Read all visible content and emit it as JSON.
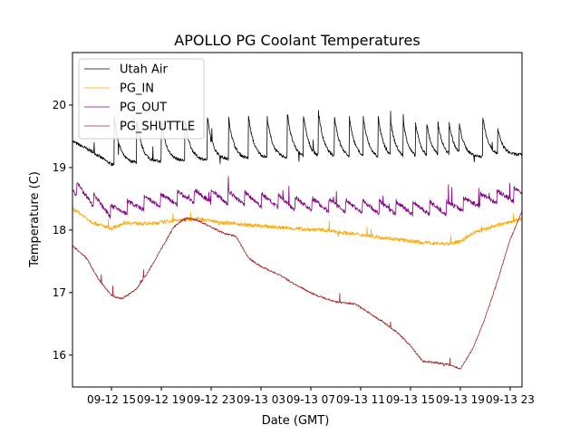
{
  "chart_data": {
    "type": "line",
    "title": "APOLLO PG Coolant Temperatures",
    "xlabel": "Date (GMT)",
    "ylabel": "Temperature (C)",
    "x_units": "hours since 09-12 00:00 GMT",
    "xlim": [
      11.87,
      47.95
    ],
    "ylim": [
      15.49,
      20.84
    ],
    "grid": false,
    "legend_position": "top-left",
    "x_ticks": [
      {
        "value": 15,
        "label": "09-12 15"
      },
      {
        "value": 19,
        "label": "09-12 19"
      },
      {
        "value": 23,
        "label": "09-12 23"
      },
      {
        "value": 27,
        "label": "09-13 03"
      },
      {
        "value": 31,
        "label": "09-13 07"
      },
      {
        "value": 35,
        "label": "09-13 11"
      },
      {
        "value": 39,
        "label": "09-13 15"
      },
      {
        "value": 43,
        "label": "09-13 19"
      },
      {
        "value": 47,
        "label": "09-13 23"
      }
    ],
    "y_ticks": [
      {
        "value": 16,
        "label": "16"
      },
      {
        "value": 17,
        "label": "17"
      },
      {
        "value": 18,
        "label": "18"
      },
      {
        "value": 19,
        "label": "19"
      },
      {
        "value": 20,
        "label": "20"
      }
    ],
    "series": [
      {
        "name": "Utah Air",
        "color": "#000000",
        "style": "sawtooth",
        "baseline": [
          [
            11.87,
            19.42
          ],
          [
            13.5,
            19.25
          ],
          [
            15.0,
            19.05
          ],
          [
            20,
            19.1
          ],
          [
            30,
            19.15
          ],
          [
            40,
            19.12
          ],
          [
            47.95,
            19.2
          ]
        ],
        "peaks": [
          [
            15.2,
            19.85
          ],
          [
            17.0,
            19.8
          ],
          [
            19.0,
            19.75
          ],
          [
            20.9,
            19.75
          ],
          [
            22.7,
            19.8
          ],
          [
            24.4,
            19.8
          ],
          [
            26.0,
            19.82
          ],
          [
            27.5,
            19.8
          ],
          [
            29.1,
            19.9
          ],
          [
            30.4,
            19.85
          ],
          [
            31.6,
            19.92
          ],
          [
            32.9,
            19.82
          ],
          [
            34.1,
            19.8
          ],
          [
            35.2,
            19.82
          ],
          [
            36.4,
            19.82
          ],
          [
            37.4,
            19.75
          ],
          [
            38.4,
            19.76
          ],
          [
            39.4,
            19.72
          ],
          [
            40.3,
            19.72
          ],
          [
            41.2,
            19.73
          ],
          [
            42.1,
            19.72
          ],
          [
            42.9,
            19.72
          ],
          [
            44.8,
            19.82
          ],
          [
            46.0,
            19.62
          ],
          [
            48.0,
            19.65
          ]
        ]
      },
      {
        "name": "PG_IN",
        "color": "#ffa500",
        "style": "noisy",
        "points": [
          [
            11.87,
            18.35
          ],
          [
            13.5,
            18.12
          ],
          [
            15.0,
            18.02
          ],
          [
            16,
            18.12
          ],
          [
            18,
            18.1
          ],
          [
            20,
            18.15
          ],
          [
            22,
            18.18
          ],
          [
            24,
            18.12
          ],
          [
            26,
            18.08
          ],
          [
            28,
            18.05
          ],
          [
            30,
            18.02
          ],
          [
            32,
            18.0
          ],
          [
            34,
            17.95
          ],
          [
            36,
            17.9
          ],
          [
            38,
            17.85
          ],
          [
            40,
            17.8
          ],
          [
            42,
            17.78
          ],
          [
            43,
            17.82
          ],
          [
            44,
            17.95
          ],
          [
            45.5,
            18.05
          ],
          [
            47.95,
            18.18
          ]
        ]
      },
      {
        "name": "PG_OUT",
        "color": "#800080",
        "style": "sawtooth-small",
        "baseline": [
          [
            11.87,
            18.7
          ],
          [
            15.0,
            18.3
          ],
          [
            18,
            18.45
          ],
          [
            22,
            18.55
          ],
          [
            26,
            18.5
          ],
          [
            30,
            18.42
          ],
          [
            34,
            18.38
          ],
          [
            38,
            18.35
          ],
          [
            42,
            18.35
          ],
          [
            45,
            18.5
          ],
          [
            47.95,
            18.58
          ]
        ],
        "amplitude": 0.15
      },
      {
        "name": "PG_SHUTTLE",
        "color": "#a52a2a",
        "style": "noisy",
        "points": [
          [
            11.87,
            17.75
          ],
          [
            13.0,
            17.55
          ],
          [
            14.0,
            17.2
          ],
          [
            15.0,
            16.95
          ],
          [
            15.8,
            16.9
          ],
          [
            17.0,
            17.05
          ],
          [
            18.0,
            17.35
          ],
          [
            19.0,
            17.7
          ],
          [
            20.0,
            18.05
          ],
          [
            21.0,
            18.2
          ],
          [
            22.0,
            18.15
          ],
          [
            23.0,
            18.05
          ],
          [
            24.0,
            17.95
          ],
          [
            25.0,
            17.9
          ],
          [
            26.0,
            17.55
          ],
          [
            27.0,
            17.42
          ],
          [
            28.5,
            17.28
          ],
          [
            30.0,
            17.1
          ],
          [
            31.5,
            16.95
          ],
          [
            33.0,
            16.85
          ],
          [
            34.5,
            16.82
          ],
          [
            35.5,
            16.7
          ],
          [
            37.0,
            16.5
          ],
          [
            38.0,
            16.35
          ],
          [
            39.0,
            16.15
          ],
          [
            40.0,
            15.9
          ],
          [
            41.0,
            15.88
          ],
          [
            42.0,
            15.85
          ],
          [
            43.0,
            15.78
          ],
          [
            44.0,
            16.1
          ],
          [
            45.0,
            16.6
          ],
          [
            46.0,
            17.2
          ],
          [
            47.0,
            17.85
          ],
          [
            47.95,
            18.3
          ]
        ]
      }
    ]
  }
}
